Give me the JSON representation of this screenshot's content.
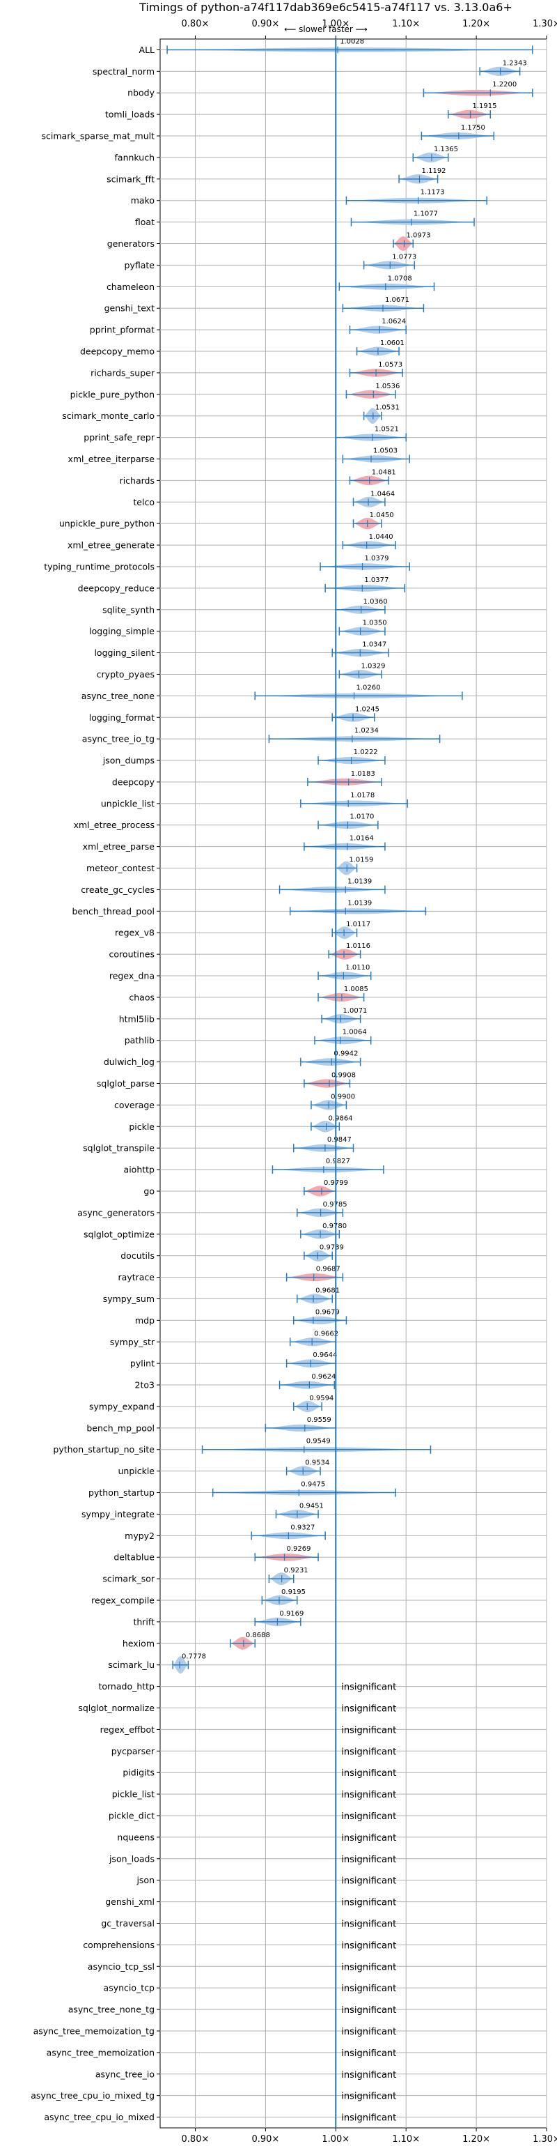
{
  "chart_data": {
    "type": "violin",
    "title": "Timings of python-a74f117dab369e6c5415-a74f117 vs. 3.13.0a6+",
    "subtitle": "⟵ slower   faster ⟶",
    "xlim": [
      0.75,
      1.3
    ],
    "xticks": [
      0.8,
      0.9,
      1.0,
      1.1,
      1.2,
      1.3
    ],
    "xtick_labels": [
      "0.80×",
      "0.90×",
      "1.00×",
      "1.10×",
      "1.20×",
      "1.30×"
    ],
    "reference_line": 1.0,
    "grid": true,
    "colors": {
      "faster": "#a9c8e5",
      "slower": "#f2a0a5",
      "whisker": "#2a7bbd",
      "reference": "#1f77b4"
    },
    "insignificant_label": "insignificant",
    "benchmarks": [
      {
        "name": "ALL",
        "mean": 1.0028,
        "label": "1.0028",
        "min": 0.76,
        "max": 1.28,
        "slower": false
      },
      {
        "name": "spectral_norm",
        "mean": 1.2343,
        "label": "1.2343",
        "min": 1.205,
        "max": 1.262,
        "slower": false
      },
      {
        "name": "nbody",
        "mean": 1.22,
        "label": "1.2200",
        "min": 1.125,
        "max": 1.28,
        "slower": true
      },
      {
        "name": "tomli_loads",
        "mean": 1.1915,
        "label": "1.1915",
        "min": 1.16,
        "max": 1.22,
        "slower": true
      },
      {
        "name": "scimark_sparse_mat_mult",
        "mean": 1.175,
        "label": "1.1750",
        "min": 1.122,
        "max": 1.225,
        "slower": false
      },
      {
        "name": "fannkuch",
        "mean": 1.1365,
        "label": "1.1365",
        "min": 1.11,
        "max": 1.16,
        "slower": false
      },
      {
        "name": "scimark_fft",
        "mean": 1.1192,
        "label": "1.1192",
        "min": 1.09,
        "max": 1.145,
        "slower": false
      },
      {
        "name": "mako",
        "mean": 1.1173,
        "label": "1.1173",
        "min": 1.015,
        "max": 1.215,
        "slower": false
      },
      {
        "name": "float",
        "mean": 1.1077,
        "label": "1.1077",
        "min": 1.022,
        "max": 1.197,
        "slower": false
      },
      {
        "name": "generators",
        "mean": 1.0973,
        "label": "1.0973",
        "min": 1.082,
        "max": 1.11,
        "slower": true
      },
      {
        "name": "pyflate",
        "mean": 1.0773,
        "label": "1.0773",
        "min": 1.04,
        "max": 1.112,
        "slower": false
      },
      {
        "name": "chameleon",
        "mean": 1.0708,
        "label": "1.0708",
        "min": 1.005,
        "max": 1.14,
        "slower": false
      },
      {
        "name": "genshi_text",
        "mean": 1.0671,
        "label": "1.0671",
        "min": 1.01,
        "max": 1.125,
        "slower": false
      },
      {
        "name": "pprint_pformat",
        "mean": 1.0624,
        "label": "1.0624",
        "min": 1.02,
        "max": 1.1,
        "slower": false
      },
      {
        "name": "deepcopy_memo",
        "mean": 1.0601,
        "label": "1.0601",
        "min": 1.03,
        "max": 1.09,
        "slower": false
      },
      {
        "name": "richards_super",
        "mean": 1.0573,
        "label": "1.0573",
        "min": 1.02,
        "max": 1.095,
        "slower": true
      },
      {
        "name": "pickle_pure_python",
        "mean": 1.0536,
        "label": "1.0536",
        "min": 1.015,
        "max": 1.085,
        "slower": true
      },
      {
        "name": "scimark_monte_carlo",
        "mean": 1.0531,
        "label": "1.0531",
        "min": 1.04,
        "max": 1.065,
        "slower": false
      },
      {
        "name": "pprint_safe_repr",
        "mean": 1.0521,
        "label": "1.0521",
        "min": 1.0,
        "max": 1.1,
        "slower": false
      },
      {
        "name": "xml_etree_iterparse",
        "mean": 1.0503,
        "label": "1.0503",
        "min": 1.01,
        "max": 1.105,
        "slower": false
      },
      {
        "name": "richards",
        "mean": 1.0481,
        "label": "1.0481",
        "min": 1.02,
        "max": 1.075,
        "slower": true
      },
      {
        "name": "telco",
        "mean": 1.0464,
        "label": "1.0464",
        "min": 1.025,
        "max": 1.07,
        "slower": false
      },
      {
        "name": "unpickle_pure_python",
        "mean": 1.045,
        "label": "1.0450",
        "min": 1.025,
        "max": 1.065,
        "slower": true
      },
      {
        "name": "xml_etree_generate",
        "mean": 1.044,
        "label": "1.0440",
        "min": 1.01,
        "max": 1.085,
        "slower": false
      },
      {
        "name": "typing_runtime_protocols",
        "mean": 1.0379,
        "label": "1.0379",
        "min": 0.978,
        "max": 1.105,
        "slower": false
      },
      {
        "name": "deepcopy_reduce",
        "mean": 1.0377,
        "label": "1.0377",
        "min": 0.985,
        "max": 1.098,
        "slower": false
      },
      {
        "name": "sqlite_synth",
        "mean": 1.036,
        "label": "1.0360",
        "min": 1.0,
        "max": 1.07,
        "slower": false
      },
      {
        "name": "logging_simple",
        "mean": 1.035,
        "label": "1.0350",
        "min": 1.005,
        "max": 1.07,
        "slower": false
      },
      {
        "name": "logging_silent",
        "mean": 1.0347,
        "label": "1.0347",
        "min": 0.995,
        "max": 1.075,
        "slower": false
      },
      {
        "name": "crypto_pyaes",
        "mean": 1.0329,
        "label": "1.0329",
        "min": 1.005,
        "max": 1.065,
        "slower": false
      },
      {
        "name": "async_tree_none",
        "mean": 1.026,
        "label": "1.0260",
        "min": 0.885,
        "max": 1.18,
        "slower": false
      },
      {
        "name": "logging_format",
        "mean": 1.0245,
        "label": "1.0245",
        "min": 0.995,
        "max": 1.055,
        "slower": false
      },
      {
        "name": "async_tree_io_tg",
        "mean": 1.0234,
        "label": "1.0234",
        "min": 0.905,
        "max": 1.148,
        "slower": false
      },
      {
        "name": "json_dumps",
        "mean": 1.0222,
        "label": "1.0222",
        "min": 0.975,
        "max": 1.07,
        "slower": false
      },
      {
        "name": "deepcopy",
        "mean": 1.0183,
        "label": "1.0183",
        "min": 0.96,
        "max": 1.065,
        "slower": true
      },
      {
        "name": "unpickle_list",
        "mean": 1.0178,
        "label": "1.0178",
        "min": 0.95,
        "max": 1.102,
        "slower": false
      },
      {
        "name": "xml_etree_process",
        "mean": 1.017,
        "label": "1.0170",
        "min": 0.975,
        "max": 1.06,
        "slower": false
      },
      {
        "name": "xml_etree_parse",
        "mean": 1.0164,
        "label": "1.0164",
        "min": 0.955,
        "max": 1.07,
        "slower": false
      },
      {
        "name": "meteor_contest",
        "mean": 1.0159,
        "label": "1.0159",
        "min": 1.0,
        "max": 1.03,
        "slower": false
      },
      {
        "name": "create_gc_cycles",
        "mean": 1.0139,
        "label": "1.0139",
        "min": 0.92,
        "max": 1.07,
        "slower": false
      },
      {
        "name": "bench_thread_pool",
        "mean": 1.0139,
        "label": "1.0139",
        "min": 0.935,
        "max": 1.128,
        "slower": false
      },
      {
        "name": "regex_v8",
        "mean": 1.0117,
        "label": "1.0117",
        "min": 0.995,
        "max": 1.03,
        "slower": false
      },
      {
        "name": "coroutines",
        "mean": 1.0116,
        "label": "1.0116",
        "min": 0.99,
        "max": 1.035,
        "slower": true
      },
      {
        "name": "regex_dna",
        "mean": 1.011,
        "label": "1.0110",
        "min": 0.975,
        "max": 1.05,
        "slower": false
      },
      {
        "name": "chaos",
        "mean": 1.0085,
        "label": "1.0085",
        "min": 0.975,
        "max": 1.04,
        "slower": true
      },
      {
        "name": "html5lib",
        "mean": 1.0071,
        "label": "1.0071",
        "min": 0.98,
        "max": 1.035,
        "slower": false
      },
      {
        "name": "pathlib",
        "mean": 1.0064,
        "label": "1.0064",
        "min": 0.97,
        "max": 1.05,
        "slower": false
      },
      {
        "name": "dulwich_log",
        "mean": 0.9942,
        "label": "0.9942",
        "min": 0.95,
        "max": 1.035,
        "slower": false
      },
      {
        "name": "sqlglot_parse",
        "mean": 0.9908,
        "label": "0.9908",
        "min": 0.955,
        "max": 1.02,
        "slower": true
      },
      {
        "name": "coverage",
        "mean": 0.99,
        "label": "0.9900",
        "min": 0.965,
        "max": 1.015,
        "slower": false
      },
      {
        "name": "pickle",
        "mean": 0.9864,
        "label": "0.9864",
        "min": 0.965,
        "max": 1.005,
        "slower": false
      },
      {
        "name": "sqlglot_transpile",
        "mean": 0.9847,
        "label": "0.9847",
        "min": 0.94,
        "max": 1.025,
        "slower": false
      },
      {
        "name": "aiohttp",
        "mean": 0.9827,
        "label": "0.9827",
        "min": 0.91,
        "max": 1.068,
        "slower": false
      },
      {
        "name": "go",
        "mean": 0.9799,
        "label": "0.9799",
        "min": 0.955,
        "max": 1.0,
        "slower": true
      },
      {
        "name": "async_generators",
        "mean": 0.9785,
        "label": "0.9785",
        "min": 0.945,
        "max": 1.01,
        "slower": false
      },
      {
        "name": "sqlglot_optimize",
        "mean": 0.978,
        "label": "0.9780",
        "min": 0.95,
        "max": 1.005,
        "slower": false
      },
      {
        "name": "docutils",
        "mean": 0.9739,
        "label": "0.9739",
        "min": 0.955,
        "max": 0.995,
        "slower": false
      },
      {
        "name": "raytrace",
        "mean": 0.9687,
        "label": "0.9687",
        "min": 0.93,
        "max": 1.01,
        "slower": true
      },
      {
        "name": "sympy_sum",
        "mean": 0.9681,
        "label": "0.9681",
        "min": 0.945,
        "max": 0.995,
        "slower": false
      },
      {
        "name": "mdp",
        "mean": 0.9679,
        "label": "0.9679",
        "min": 0.94,
        "max": 1.015,
        "slower": false
      },
      {
        "name": "sympy_str",
        "mean": 0.9662,
        "label": "0.9662",
        "min": 0.935,
        "max": 1.0,
        "slower": false
      },
      {
        "name": "pylint",
        "mean": 0.9644,
        "label": "0.9644",
        "min": 0.93,
        "max": 1.0,
        "slower": false
      },
      {
        "name": "2to3",
        "mean": 0.9624,
        "label": "0.9624",
        "min": 0.92,
        "max": 0.998,
        "slower": false
      },
      {
        "name": "sympy_expand",
        "mean": 0.9594,
        "label": "0.9594",
        "min": 0.94,
        "max": 0.98,
        "slower": false
      },
      {
        "name": "bench_mp_pool",
        "mean": 0.9559,
        "label": "0.9559",
        "min": 0.9,
        "max": 1.0,
        "slower": false
      },
      {
        "name": "python_startup_no_site",
        "mean": 0.9549,
        "label": "0.9549",
        "min": 0.81,
        "max": 1.135,
        "slower": false
      },
      {
        "name": "unpickle",
        "mean": 0.9534,
        "label": "0.9534",
        "min": 0.93,
        "max": 0.978,
        "slower": false
      },
      {
        "name": "python_startup",
        "mean": 0.9475,
        "label": "0.9475",
        "min": 0.825,
        "max": 1.085,
        "slower": false
      },
      {
        "name": "sympy_integrate",
        "mean": 0.9451,
        "label": "0.9451",
        "min": 0.915,
        "max": 0.975,
        "slower": false
      },
      {
        "name": "mypy2",
        "mean": 0.9327,
        "label": "0.9327",
        "min": 0.88,
        "max": 0.985,
        "slower": false
      },
      {
        "name": "deltablue",
        "mean": 0.9269,
        "label": "0.9269",
        "min": 0.885,
        "max": 0.975,
        "slower": true
      },
      {
        "name": "scimark_sor",
        "mean": 0.9231,
        "label": "0.9231",
        "min": 0.905,
        "max": 0.94,
        "slower": false
      },
      {
        "name": "regex_compile",
        "mean": 0.9195,
        "label": "0.9195",
        "min": 0.895,
        "max": 0.945,
        "slower": false
      },
      {
        "name": "thrift",
        "mean": 0.9169,
        "label": "0.9169",
        "min": 0.885,
        "max": 0.95,
        "slower": false
      },
      {
        "name": "hexiom",
        "mean": 0.8688,
        "label": "0.8688",
        "min": 0.85,
        "max": 0.885,
        "slower": true
      },
      {
        "name": "scimark_lu",
        "mean": 0.7778,
        "label": "0.7778",
        "min": 0.768,
        "max": 0.79,
        "slower": false
      },
      {
        "name": "tornado_http",
        "insignificant": true
      },
      {
        "name": "sqlglot_normalize",
        "insignificant": true
      },
      {
        "name": "regex_effbot",
        "insignificant": true
      },
      {
        "name": "pycparser",
        "insignificant": true
      },
      {
        "name": "pidigits",
        "insignificant": true
      },
      {
        "name": "pickle_list",
        "insignificant": true
      },
      {
        "name": "pickle_dict",
        "insignificant": true
      },
      {
        "name": "nqueens",
        "insignificant": true
      },
      {
        "name": "json_loads",
        "insignificant": true
      },
      {
        "name": "json",
        "insignificant": true
      },
      {
        "name": "genshi_xml",
        "insignificant": true
      },
      {
        "name": "gc_traversal",
        "insignificant": true
      },
      {
        "name": "comprehensions",
        "insignificant": true
      },
      {
        "name": "asyncio_tcp_ssl",
        "insignificant": true
      },
      {
        "name": "asyncio_tcp",
        "insignificant": true
      },
      {
        "name": "async_tree_none_tg",
        "insignificant": true
      },
      {
        "name": "async_tree_memoization_tg",
        "insignificant": true
      },
      {
        "name": "async_tree_memoization",
        "insignificant": true
      },
      {
        "name": "async_tree_io",
        "insignificant": true
      },
      {
        "name": "async_tree_cpu_io_mixed_tg",
        "insignificant": true
      },
      {
        "name": "async_tree_cpu_io_mixed",
        "insignificant": true
      }
    ]
  }
}
